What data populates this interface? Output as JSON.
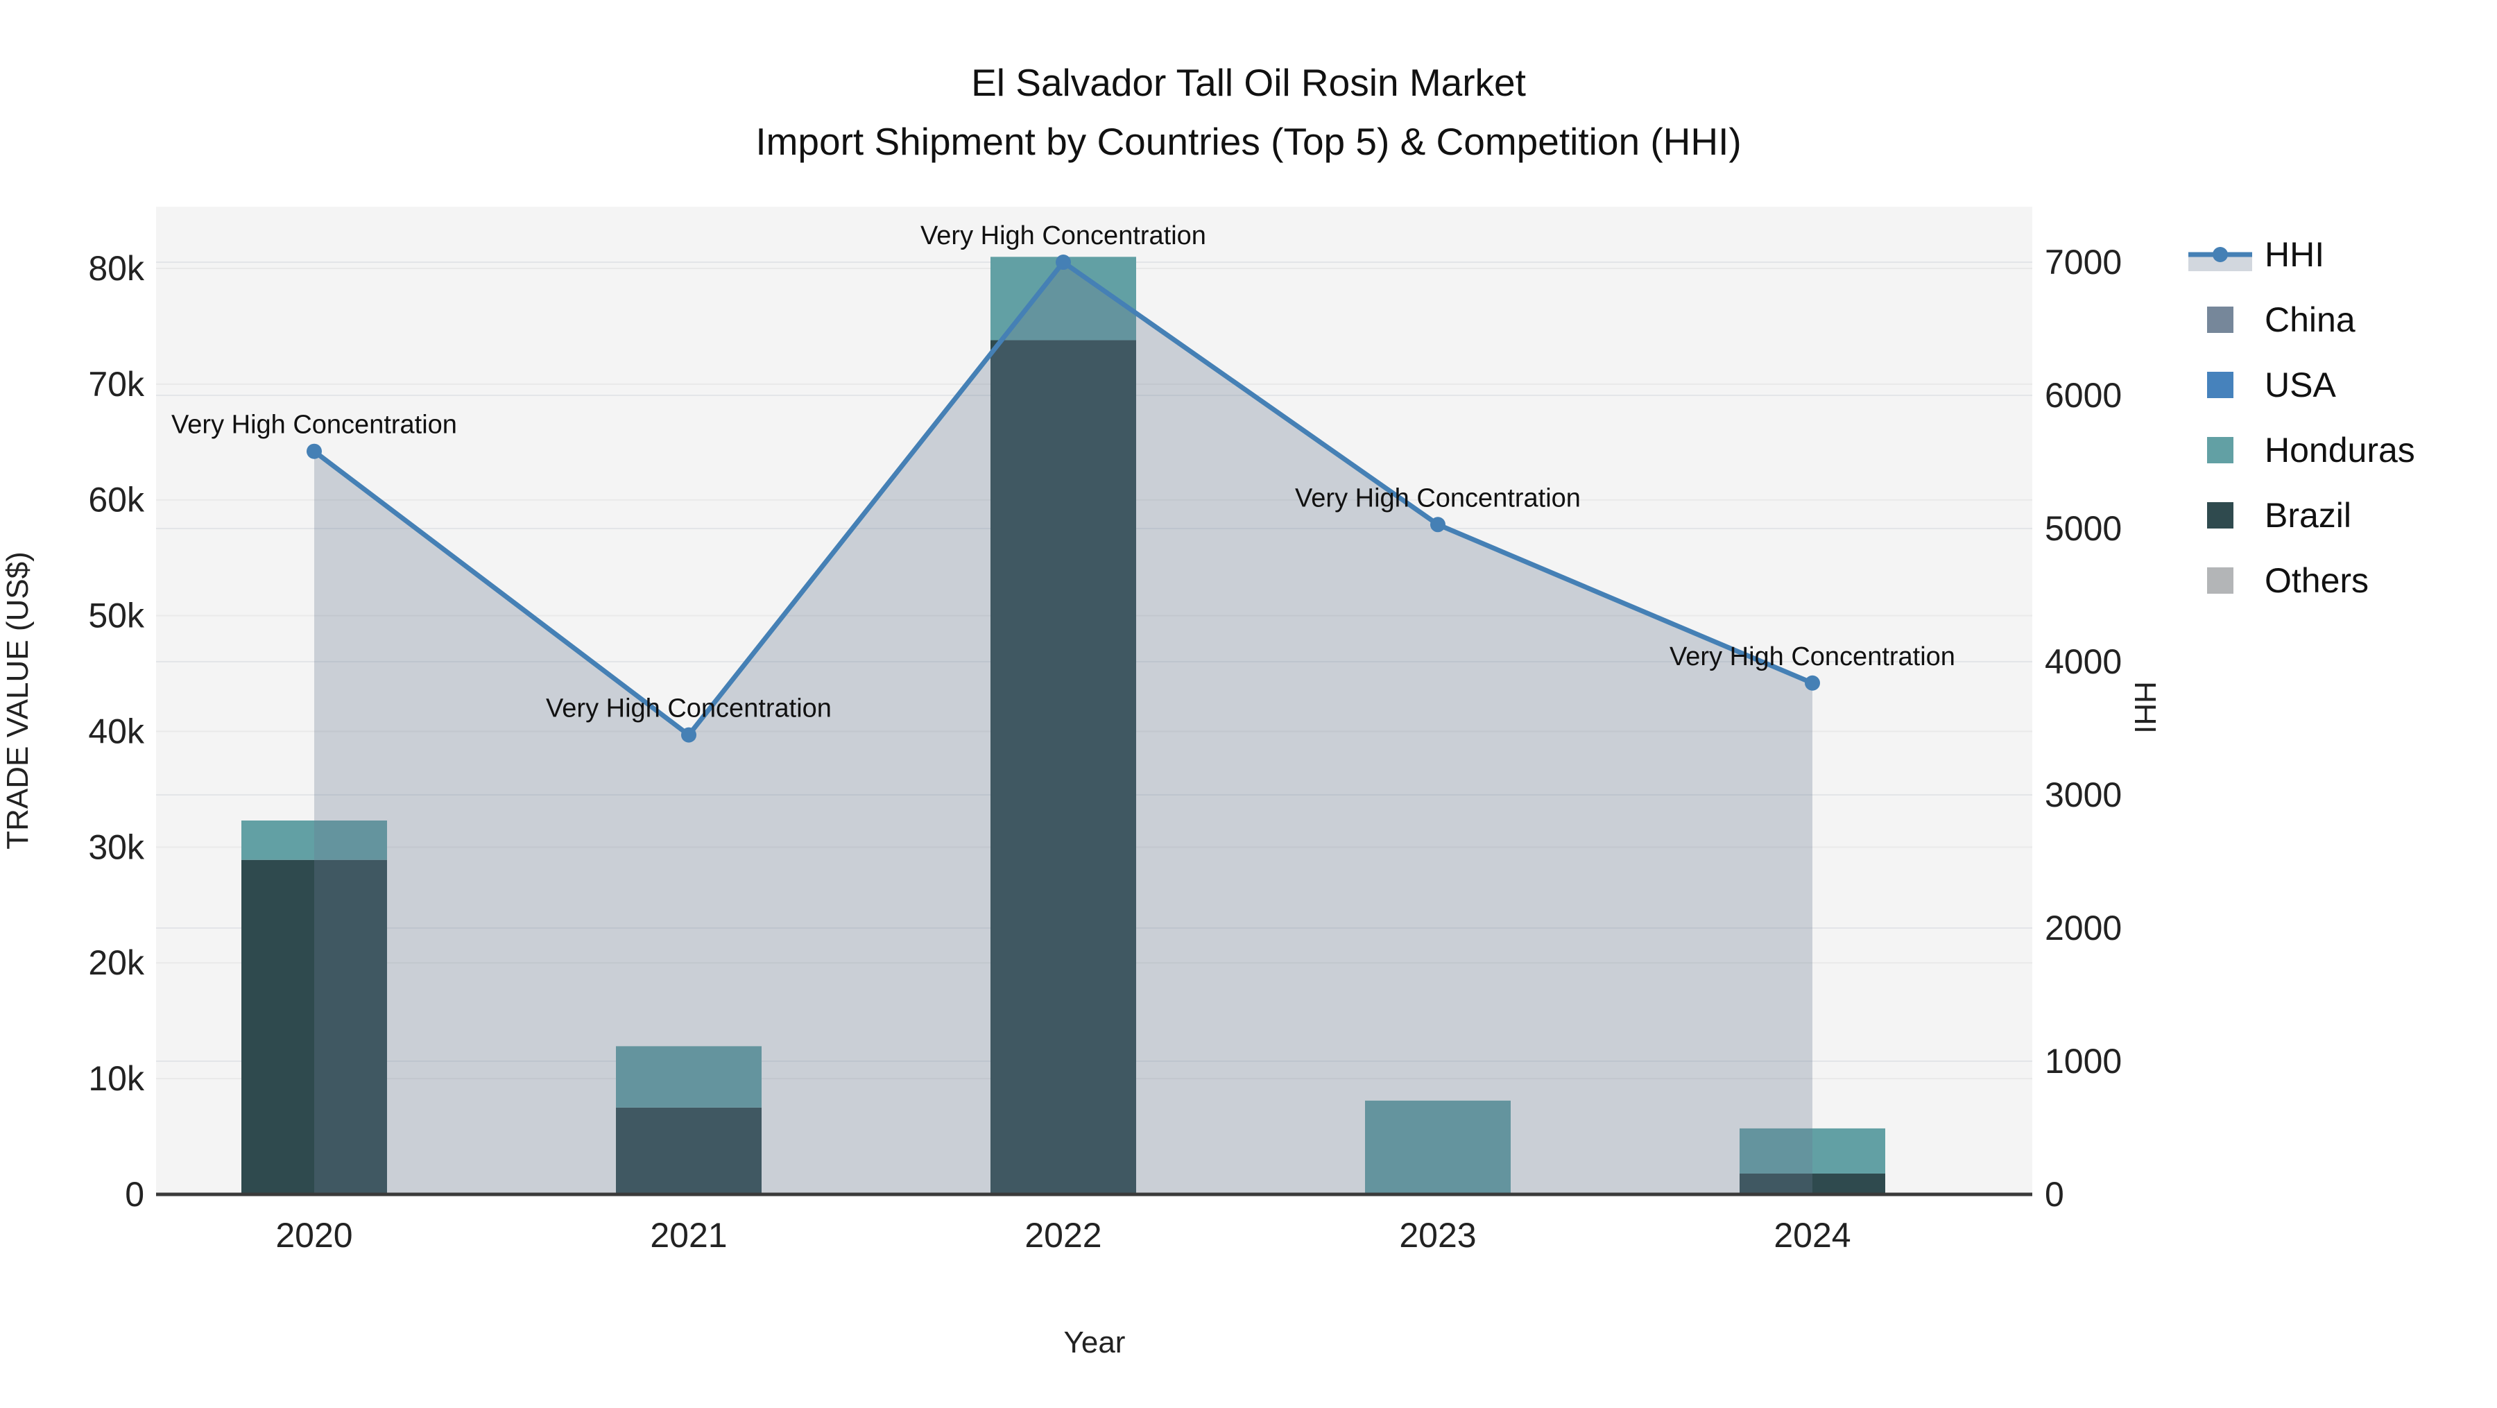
{
  "title": {
    "line1": "El Salvador Tall Oil Rosin Market",
    "line2": "Import Shipment by Countries (Top 5) & Competition (HHI)"
  },
  "axes": {
    "x_title": "Year",
    "y_left_title": "TRADE VALUE (US$)",
    "y_right_title": "HHI",
    "y_left_ticks": [
      "0",
      "10k",
      "20k",
      "30k",
      "40k",
      "50k",
      "60k",
      "70k",
      "80k"
    ],
    "y_left_tick_values": [
      0,
      10000,
      20000,
      30000,
      40000,
      50000,
      60000,
      70000,
      80000
    ],
    "y_right_ticks": [
      "0",
      "1000",
      "2000",
      "3000",
      "4000",
      "5000",
      "6000",
      "7000"
    ],
    "y_right_tick_values": [
      0,
      1000,
      2000,
      3000,
      4000,
      5000,
      6000,
      7000
    ]
  },
  "legend": {
    "items": [
      "HHI",
      "China",
      "USA",
      "Honduras",
      "Brazil",
      "Others"
    ]
  },
  "chart_data": {
    "type": "bar+line",
    "title": "El Salvador Tall Oil Rosin Market — Import Shipment by Countries (Top 5) & Competition (HHI)",
    "categories": [
      "2020",
      "2021",
      "2022",
      "2023",
      "2024"
    ],
    "xlabel": "Year",
    "ylabel_left": "TRADE VALUE (US$)",
    "ylabel_right": "HHI",
    "ylim_left": [
      0,
      85333
    ],
    "ylim_right": [
      0,
      7417
    ],
    "grid": true,
    "legend_position": "right",
    "plot_bg": "#f4f4f4",
    "grid_color": "#e7e7e7",
    "stack_order": [
      "China",
      "USA",
      "Brazil",
      "Honduras",
      "Others"
    ],
    "series": [
      {
        "name": "China",
        "type": "bar",
        "color": "#76879a",
        "values": [
          0,
          0,
          0,
          0,
          0
        ]
      },
      {
        "name": "USA",
        "type": "bar",
        "color": "#4682bc",
        "values": [
          0,
          0,
          0,
          0,
          0
        ]
      },
      {
        "name": "Honduras",
        "type": "bar",
        "color": "#62a0a4",
        "values": [
          3400,
          5300,
          7200,
          8100,
          3900
        ]
      },
      {
        "name": "Brazil",
        "type": "bar",
        "color": "#2f4a4e",
        "values": [
          28900,
          7500,
          73800,
          0,
          1800
        ]
      },
      {
        "name": "Others",
        "type": "bar",
        "color": "#b3b5b7",
        "values": [
          0,
          0,
          0,
          0,
          0
        ]
      }
    ],
    "hhi": {
      "name": "HHI",
      "type": "line",
      "color": "#4580b5",
      "fill": "rgba(107,121,145,0.30)",
      "values": [
        5580,
        3450,
        7000,
        5030,
        3840
      ]
    },
    "point_annotations": [
      "Very High Concentration",
      "Very High Concentration",
      "Very High Concentration",
      "Very High Concentration",
      "Very High Concentration"
    ]
  }
}
